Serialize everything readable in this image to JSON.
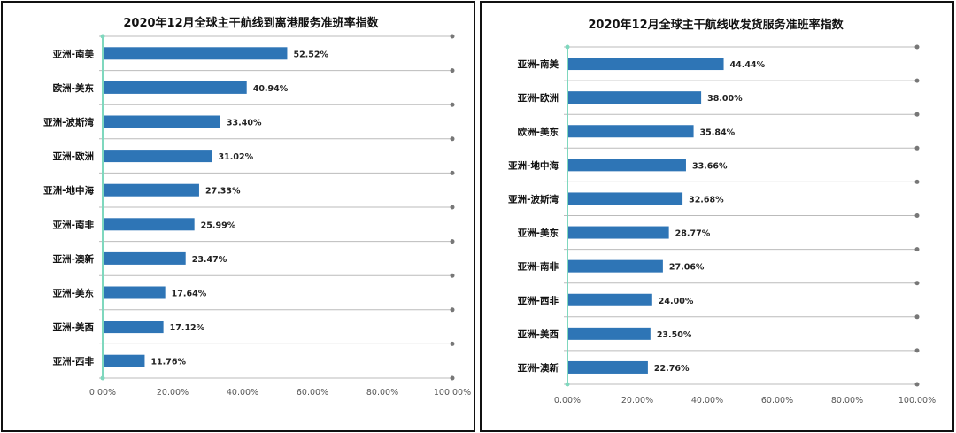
{
  "chart_data": [
    {
      "type": "bar",
      "orientation": "horizontal",
      "title": "2020年12月全球主干航线到离港服务准班率指数",
      "categories": [
        "亚洲-南美",
        "欧洲-美东",
        "亚洲-波斯湾",
        "亚洲-欧洲",
        "亚洲-地中海",
        "亚洲-南非",
        "亚洲-澳新",
        "亚洲-美东",
        "亚洲-美西",
        "亚洲-西非"
      ],
      "values": [
        52.52,
        40.94,
        33.4,
        31.02,
        27.33,
        25.99,
        23.47,
        17.64,
        17.12,
        11.76
      ],
      "data_labels": [
        "52.52%",
        "40.94%",
        "33.40%",
        "31.02%",
        "27.33%",
        "25.99%",
        "23.47%",
        "17.64%",
        "17.12%",
        "11.76%"
      ],
      "xlim": [
        0,
        100
      ],
      "x_ticks": [
        "0.00%",
        "20.00%",
        "40.00%",
        "60.00%",
        "80.00%",
        "100.00%"
      ],
      "grid": true,
      "bar_color": "#2E75B6",
      "axis_color": "#7FD8BE"
    },
    {
      "type": "bar",
      "orientation": "horizontal",
      "title": "2020年12月全球主干航线收发货服务准班率指数",
      "categories": [
        "亚洲-南美",
        "亚洲-欧洲",
        "欧洲-美东",
        "亚洲-地中海",
        "亚洲-波斯湾",
        "亚洲-美东",
        "亚洲-南非",
        "亚洲-西非",
        "亚洲-美西",
        "亚洲-澳新"
      ],
      "values": [
        44.44,
        38.0,
        35.84,
        33.66,
        32.68,
        28.77,
        27.06,
        24.0,
        23.5,
        22.76
      ],
      "data_labels": [
        "44.44%",
        "38.00%",
        "35.84%",
        "33.66%",
        "32.68%",
        "28.77%",
        "27.06%",
        "24.00%",
        "23.50%",
        "22.76%"
      ],
      "xlim": [
        0,
        100
      ],
      "x_ticks": [
        "0.00%",
        "20.00%",
        "40.00%",
        "60.00%",
        "80.00%",
        "100.00%"
      ],
      "grid": true,
      "bar_color": "#2E75B6",
      "axis_color": "#7FD8BE"
    }
  ]
}
